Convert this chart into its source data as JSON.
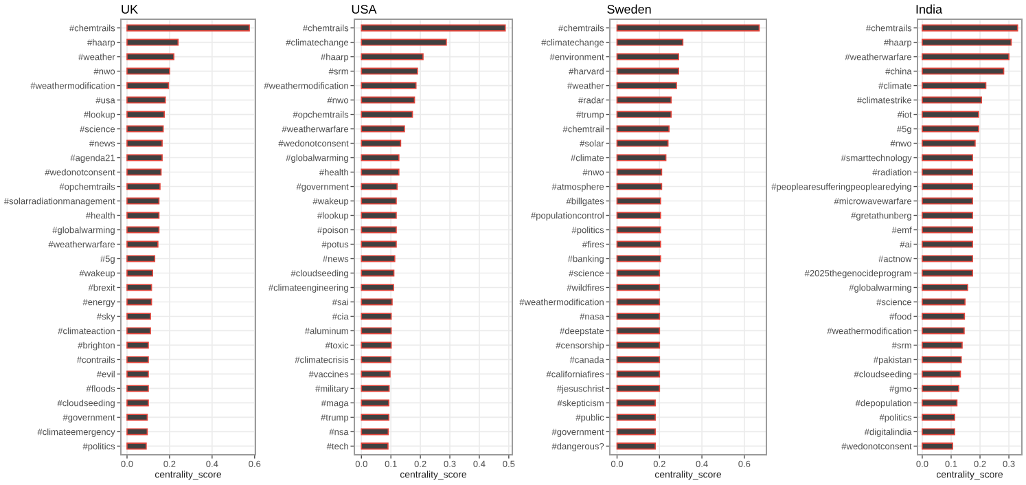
{
  "chart_data": [
    {
      "type": "bar",
      "orientation": "horizontal",
      "title": "UK",
      "xlabel": "centrality_score",
      "grid": true,
      "color": "#404040",
      "categories": [
        "#chemtrails",
        "#haarp",
        "#weather",
        "#nwo",
        "#weathermodification",
        "#usa",
        "#lookup",
        "#science",
        "#news",
        "#agenda21",
        "#wedonotconsent",
        "#opchemtrails",
        "#solarradiationmanagement",
        "#health",
        "#globalwarming",
        "#weatherwarfare",
        "#5g",
        "#wakeup",
        "#brexit",
        "#energy",
        "#sky",
        "#climateaction",
        "#brighton",
        "#contrails",
        "#evil",
        "#floods",
        "#cloudseeding",
        "#government",
        "#climateemergency",
        "#politics"
      ],
      "values": [
        0.575,
        0.24,
        0.22,
        0.2,
        0.195,
        0.18,
        0.175,
        0.17,
        0.165,
        0.165,
        0.16,
        0.155,
        0.15,
        0.15,
        0.15,
        0.145,
        0.13,
        0.12,
        0.115,
        0.115,
        0.11,
        0.11,
        0.1,
        0.1,
        0.1,
        0.1,
        0.1,
        0.095,
        0.095,
        0.09
      ],
      "xlim": [
        -0.029,
        0.604
      ],
      "xticks": [
        {
          "value": 0,
          "label": "0.0"
        },
        {
          "value": 0.2,
          "label": "0.2"
        },
        {
          "value": 0.4,
          "label": "0.4"
        },
        {
          "value": 0.6,
          "label": "0.6"
        }
      ]
    },
    {
      "type": "bar",
      "orientation": "horizontal",
      "title": "USA",
      "xlabel": "centrality_score",
      "grid": true,
      "color": "#404040",
      "categories": [
        "#chemtrails",
        "#climatechange",
        "#haarp",
        "#srm",
        "#weathermodification",
        "#nwo",
        "#opchemtrails",
        "#weatherwarfare",
        "#wedonotconsent",
        "#globalwarming",
        "#health",
        "#government",
        "#wakeup",
        "#lookup",
        "#poison",
        "#potus",
        "#news",
        "#cloudseeding",
        "#climateengineering",
        "#sai",
        "#cia",
        "#aluminum",
        "#toxic",
        "#climatecrisis",
        "#vaccines",
        "#military",
        "#maga",
        "#trump",
        "#nsa",
        "#tech"
      ],
      "values": [
        0.488,
        0.288,
        0.209,
        0.19,
        0.185,
        0.18,
        0.173,
        0.146,
        0.133,
        0.127,
        0.127,
        0.121,
        0.118,
        0.118,
        0.118,
        0.118,
        0.113,
        0.11,
        0.109,
        0.104,
        0.101,
        0.101,
        0.101,
        0.1,
        0.097,
        0.094,
        0.093,
        0.093,
        0.091,
        0.09
      ],
      "xlim": [
        -0.024,
        0.512
      ],
      "xticks": [
        {
          "value": 0,
          "label": "0.0"
        },
        0.1,
        0.2,
        0.3,
        0.4,
        0.5
      ]
    },
    {
      "type": "bar",
      "orientation": "horizontal",
      "title": "Sweden",
      "xlabel": "centrality_score",
      "grid": true,
      "color": "#404040",
      "categories": [
        "#chemtrails",
        "#climatechange",
        "#environment",
        "#harvard",
        "#weather",
        "#radar",
        "#trump",
        "#chemtrail",
        "#solar",
        "#climate",
        "#nwo",
        "#atmosphere",
        "#billgates",
        "#populationcontrol",
        "#politics",
        "#fires",
        "#banking",
        "#science",
        "#wildfires",
        "#weathermodification",
        "#nasa",
        "#deepstate",
        "#censorship",
        "#canada",
        "#californiafires",
        "#jesuschrist",
        "#skepticism",
        "#public",
        "#government",
        "#dangerous?"
      ],
      "values": [
        0.67,
        0.31,
        0.29,
        0.29,
        0.28,
        0.255,
        0.255,
        0.245,
        0.24,
        0.23,
        0.21,
        0.21,
        0.205,
        0.205,
        0.205,
        0.205,
        0.205,
        0.2,
        0.2,
        0.2,
        0.2,
        0.2,
        0.2,
        0.2,
        0.2,
        0.2,
        0.18,
        0.18,
        0.18,
        0.18
      ],
      "xlim": [
        -0.034,
        0.704
      ],
      "xticks": [
        {
          "value": 0,
          "label": "0.0"
        },
        {
          "value": 0.2,
          "label": "0.2"
        },
        {
          "value": 0.4,
          "label": "0.4"
        },
        {
          "value": 0.6,
          "label": "0.6"
        }
      ]
    },
    {
      "type": "bar",
      "orientation": "horizontal",
      "title": "India",
      "xlabel": "centrality_score",
      "grid": true,
      "color": "#404040",
      "categories": [
        "#chemtrails",
        "#haarp",
        "#weatherwarfare",
        "#china",
        "#climate",
        "#climatestrike",
        "#iot",
        "#5g",
        "#nwo",
        "#smarttechnology",
        "#radiation",
        "#peoplearesufferingpeoplearedying",
        "#microwavewarfare",
        "#gretathunberg",
        "#emf",
        "#ai",
        "#actnow",
        "#2025thegenocideprogram",
        "#globalwarming",
        "#science",
        "#food",
        "#weathermodification",
        "#srm",
        "#pakistan",
        "#cloudseeding",
        "#gmo",
        "#depopulation",
        "#politics",
        "#digitalindia",
        "#wedonotconsent"
      ],
      "values": [
        0.33,
        0.308,
        0.3,
        0.282,
        0.22,
        0.205,
        0.195,
        0.195,
        0.183,
        0.174,
        0.174,
        0.174,
        0.174,
        0.174,
        0.174,
        0.174,
        0.174,
        0.174,
        0.157,
        0.148,
        0.146,
        0.145,
        0.138,
        0.135,
        0.132,
        0.126,
        0.12,
        0.112,
        0.112,
        0.105
      ],
      "xlim": [
        -0.0165,
        0.345
      ],
      "xticks": [
        {
          "value": 0,
          "label": "0.0"
        },
        0.1,
        0.2,
        0.3
      ]
    }
  ]
}
